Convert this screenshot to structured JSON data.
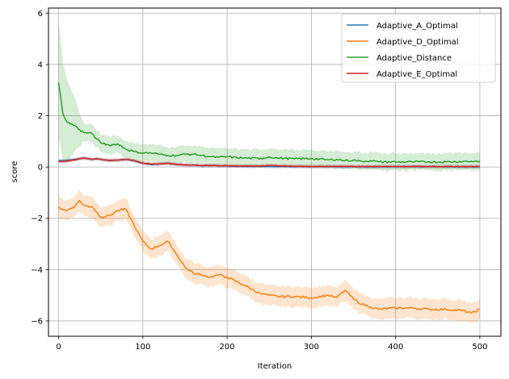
{
  "chart_data": {
    "type": "line",
    "title": "",
    "xlabel": "Iteration",
    "ylabel": "score",
    "xlim": [
      -12,
      525
    ],
    "ylim": [
      -6.6,
      6.2
    ],
    "xticks": [
      0,
      100,
      200,
      300,
      400,
      500
    ],
    "yticks": [
      -6,
      -4,
      -2,
      0,
      2,
      4,
      6
    ],
    "xtick_labels": [
      "0",
      "100",
      "200",
      "300",
      "400",
      "500"
    ],
    "ytick_labels": [
      "−6",
      "−4",
      "−2",
      "0",
      "2",
      "4",
      "6"
    ],
    "grid": true,
    "legend_position": "upper right",
    "shaded_band": "mean ± spread",
    "x": [
      0,
      5,
      10,
      20,
      25,
      30,
      40,
      45,
      50,
      60,
      70,
      80,
      90,
      100,
      110,
      120,
      130,
      140,
      150,
      160,
      170,
      180,
      190,
      200,
      220,
      240,
      250,
      260,
      280,
      300,
      320,
      330,
      340,
      350,
      360,
      370,
      380,
      400,
      420,
      440,
      460,
      480,
      490,
      500
    ],
    "series": [
      {
        "name": "Adaptive_A_Optimal",
        "color": "#1f77b4",
        "values": [
          0.25,
          0.25,
          0.26,
          0.3,
          0.33,
          0.35,
          0.3,
          0.33,
          0.3,
          0.25,
          0.27,
          0.3,
          0.24,
          0.15,
          0.1,
          0.12,
          0.15,
          0.1,
          0.08,
          0.08,
          0.05,
          0.06,
          0.04,
          0.04,
          0.03,
          0.03,
          0.02,
          0.02,
          0.02,
          0.02,
          0.02,
          0.02,
          0.01,
          0.01,
          0.01,
          0.01,
          0.01,
          0.01,
          0.01,
          0.01,
          0.01,
          0.01,
          0.01,
          0.01
        ],
        "band": 0.06
      },
      {
        "name": "Adaptive_D_Optimal",
        "color": "#ff7f0e",
        "values": [
          -1.55,
          -1.65,
          -1.7,
          -1.5,
          -1.3,
          -1.5,
          -1.55,
          -1.75,
          -1.95,
          -1.9,
          -1.7,
          -1.65,
          -2.3,
          -2.9,
          -3.2,
          -3.05,
          -2.9,
          -3.4,
          -3.9,
          -4.15,
          -4.2,
          -4.3,
          -4.2,
          -4.3,
          -4.6,
          -4.95,
          -5.0,
          -5.05,
          -5.05,
          -5.1,
          -5.0,
          -5.1,
          -4.8,
          -5.15,
          -5.35,
          -5.45,
          -5.55,
          -5.5,
          -5.5,
          -5.55,
          -5.55,
          -5.6,
          -5.7,
          -5.55
        ],
        "band": 0.35
      },
      {
        "name": "Adaptive_Distance",
        "color": "#2ca02c",
        "values": [
          3.3,
          2.1,
          1.75,
          1.6,
          1.45,
          1.35,
          1.3,
          1.1,
          0.95,
          0.85,
          0.9,
          0.7,
          0.6,
          0.55,
          0.55,
          0.5,
          0.45,
          0.45,
          0.5,
          0.5,
          0.45,
          0.4,
          0.38,
          0.4,
          0.35,
          0.33,
          0.4,
          0.35,
          0.32,
          0.33,
          0.28,
          0.3,
          0.25,
          0.27,
          0.22,
          0.25,
          0.2,
          0.2,
          0.2,
          0.2,
          0.2,
          0.22,
          0.22,
          0.23
        ],
        "band": 0.3
      },
      {
        "name": "Adaptive_E_Optimal",
        "color": "#d62728",
        "values": [
          0.22,
          0.22,
          0.23,
          0.28,
          0.32,
          0.35,
          0.3,
          0.32,
          0.3,
          0.26,
          0.27,
          0.3,
          0.25,
          0.15,
          0.12,
          0.12,
          0.15,
          0.1,
          0.08,
          0.08,
          0.06,
          0.06,
          0.05,
          0.05,
          0.04,
          0.04,
          0.06,
          0.05,
          0.03,
          0.02,
          0.02,
          0.02,
          0.02,
          0.02,
          0.02,
          0.02,
          0.02,
          0.02,
          0.02,
          0.02,
          0.02,
          0.02,
          0.02,
          0.02
        ],
        "band": 0.06
      }
    ]
  },
  "legend": {
    "items": [
      {
        "label": "Adaptive_A_Optimal",
        "color": "#1f77b4"
      },
      {
        "label": "Adaptive_D_Optimal",
        "color": "#ff7f0e"
      },
      {
        "label": "Adaptive_Distance",
        "color": "#2ca02c"
      },
      {
        "label": "Adaptive_E_Optimal",
        "color": "#d62728"
      }
    ]
  },
  "axes": {
    "xlabel": "Iteration",
    "ylabel": "score"
  }
}
